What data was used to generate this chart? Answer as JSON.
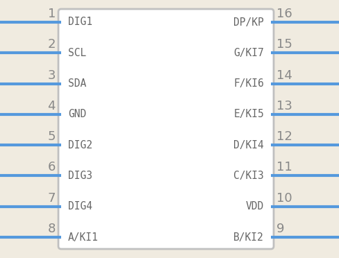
{
  "bg_color": "#f0ebe0",
  "box_bg": "#ffffff",
  "box_edge_color": "#c0c0c0",
  "pin_line_color": "#5599dd",
  "num_color": "#888888",
  "label_color": "#666666",
  "left_pins": [
    {
      "num": 1,
      "label": "DIG1"
    },
    {
      "num": 2,
      "label": "SCL"
    },
    {
      "num": 3,
      "label": "SDA"
    },
    {
      "num": 4,
      "label": "GND"
    },
    {
      "num": 5,
      "label": "DIG2"
    },
    {
      "num": 6,
      "label": "DIG3"
    },
    {
      "num": 7,
      "label": "DIG4"
    },
    {
      "num": 8,
      "label": "A/KI1"
    }
  ],
  "right_pins": [
    {
      "num": 16,
      "label": "DP/KP"
    },
    {
      "num": 15,
      "label": "G/KI7"
    },
    {
      "num": 14,
      "label": "F/KI6"
    },
    {
      "num": 13,
      "label": "E/KI5"
    },
    {
      "num": 12,
      "label": "D/KI4"
    },
    {
      "num": 11,
      "label": "C/KI3"
    },
    {
      "num": 10,
      "label": "VDD"
    },
    {
      "num": 9,
      "label": "B/KI2"
    }
  ],
  "fig_width": 4.88,
  "fig_height": 3.72,
  "dpi": 100
}
